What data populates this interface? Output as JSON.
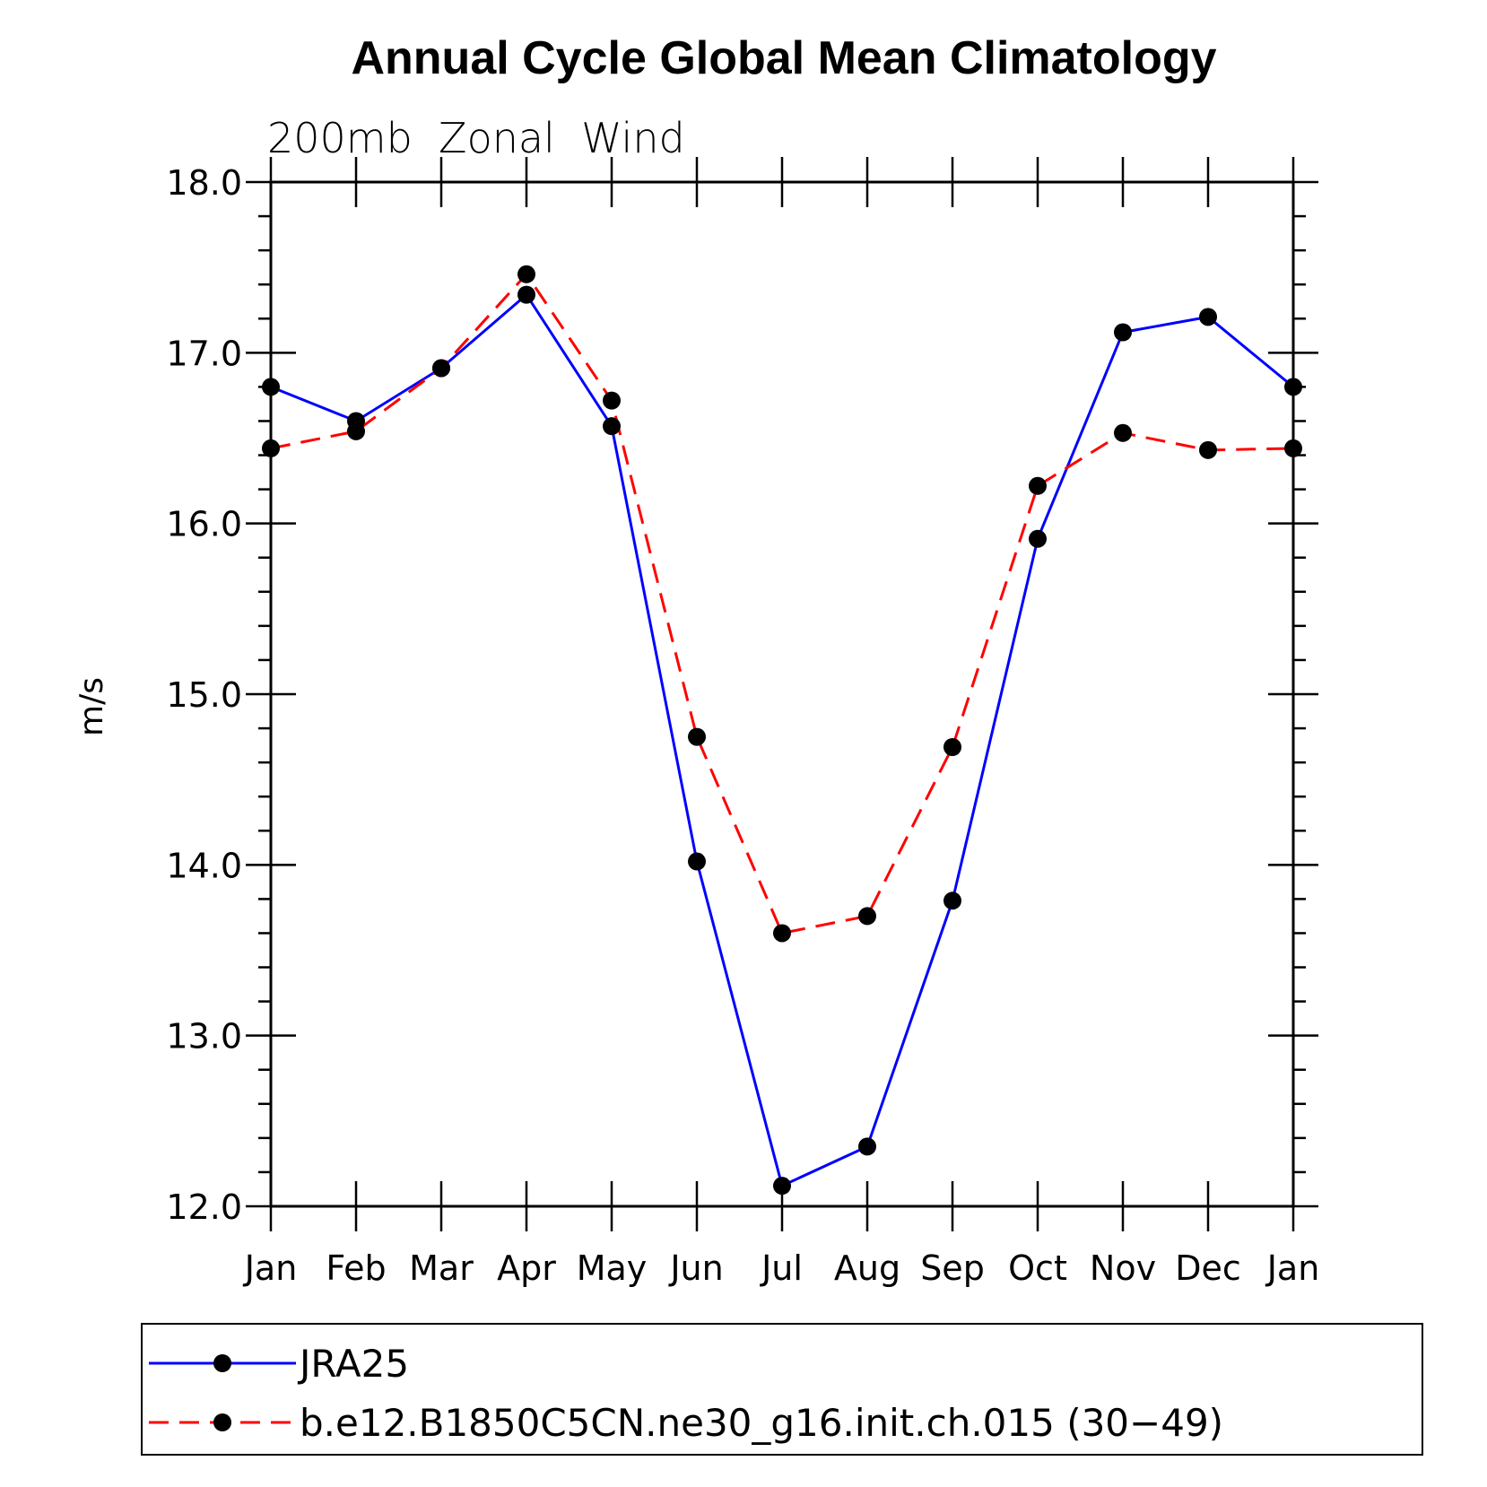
{
  "chart_data": {
    "type": "line",
    "title": "Annual Cycle Global Mean Climatology",
    "subtitle": "200mb  Zonal  Wind",
    "xlabel": "",
    "ylabel": "m/s",
    "categories": [
      "Jan",
      "Feb",
      "Mar",
      "Apr",
      "May",
      "Jun",
      "Jul",
      "Aug",
      "Sep",
      "Oct",
      "Nov",
      "Dec",
      "Jan"
    ],
    "ylim": [
      12.0,
      18.0
    ],
    "yticks": [
      "12.0",
      "13.0",
      "14.0",
      "15.0",
      "16.0",
      "17.0",
      "18.0"
    ],
    "ytick_values": [
      12,
      13,
      14,
      15,
      16,
      17,
      18
    ],
    "minor_ytick_step": 0.2,
    "series": [
      {
        "name": "JRA25",
        "color": "#0000ff",
        "dash": "solid",
        "marker": "circle",
        "values": [
          16.8,
          16.6,
          16.91,
          17.34,
          16.57,
          14.02,
          12.12,
          12.35,
          13.79,
          15.91,
          17.12,
          17.21,
          16.8
        ]
      },
      {
        "name": "b.e12.B1850C5CN.ne30_g16.init.ch.015 (30−49)",
        "color": "#ff0000",
        "dash": "dashed",
        "marker": "circle",
        "values": [
          16.44,
          16.54,
          16.91,
          17.46,
          16.72,
          14.75,
          13.6,
          13.7,
          14.69,
          16.22,
          16.53,
          16.43,
          16.44
        ]
      }
    ],
    "legend_position": "bottom"
  }
}
